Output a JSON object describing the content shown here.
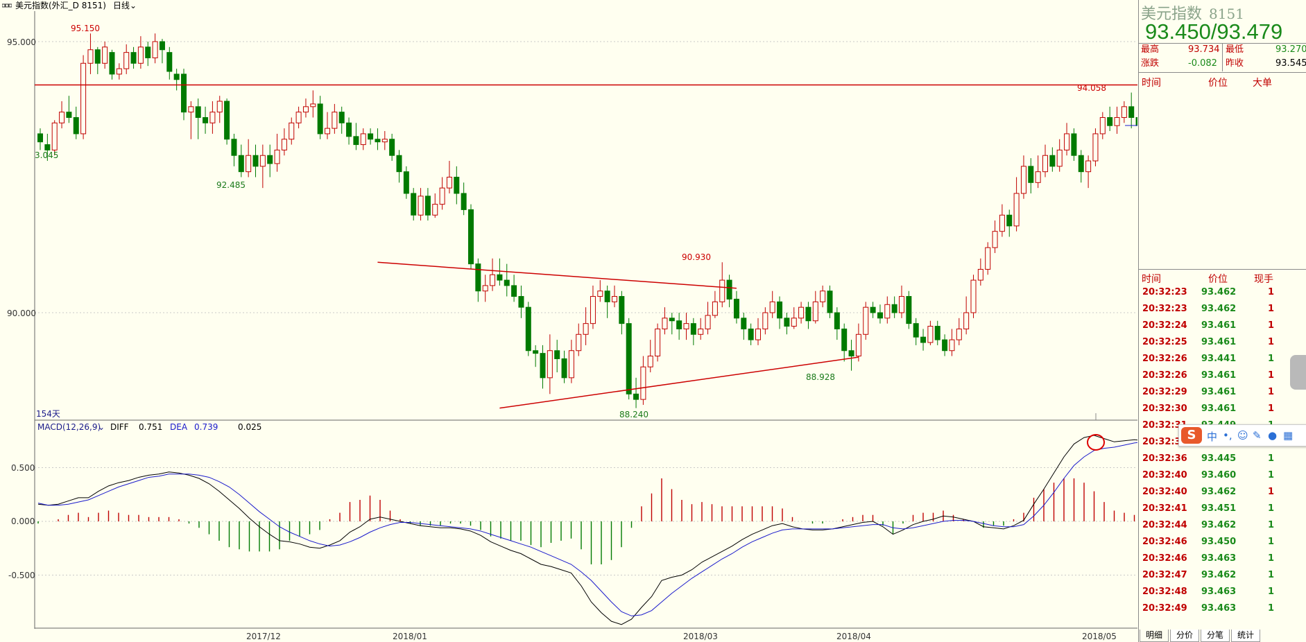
{
  "window": {
    "title": "美元指数(外汇_D 8151)",
    "period": "日线"
  },
  "chart_data": {
    "type": "candlestick",
    "symbol": "美元指数",
    "y_ticks": [
      "95.000",
      "90.000"
    ],
    "x_ticks": [
      "2017/12",
      "2018/01",
      "2018/03",
      "2018/04",
      "2018/05"
    ],
    "bar_count_label": "154天",
    "annotations": [
      {
        "text": "95.150",
        "kind": "high"
      },
      {
        "text": "3.045",
        "kind": "low"
      },
      {
        "text": "92.485",
        "kind": "low"
      },
      {
        "text": "90.930",
        "kind": "high"
      },
      {
        "text": "88.928",
        "kind": "low"
      },
      {
        "text": "88.240",
        "kind": "low"
      },
      {
        "text": "94.058",
        "kind": "high"
      }
    ],
    "horizontal_line": 94.2,
    "trendlines": [
      {
        "name": "upper",
        "from": [
          47,
          90.93
        ],
        "to": [
          97,
          90.45
        ]
      },
      {
        "name": "lower",
        "from": [
          64,
          88.24
        ],
        "to": [
          114,
          89.18
        ]
      }
    ],
    "candles": [
      [
        93.3,
        93.15,
        93.4,
        93.0
      ],
      [
        93.1,
        93.0,
        93.3,
        92.8
      ],
      [
        93.0,
        93.5,
        93.55,
        92.9
      ],
      [
        93.5,
        93.7,
        93.9,
        93.4
      ],
      [
        93.7,
        93.6,
        94.0,
        93.5
      ],
      [
        93.6,
        93.3,
        93.8,
        93.2
      ],
      [
        93.3,
        94.6,
        94.75,
        93.2
      ],
      [
        94.6,
        94.85,
        95.15,
        94.4
      ],
      [
        94.85,
        94.6,
        94.9,
        94.4
      ],
      [
        94.6,
        94.9,
        95.0,
        94.5
      ],
      [
        94.8,
        94.4,
        94.85,
        94.3
      ],
      [
        94.4,
        94.5,
        94.6,
        94.3
      ],
      [
        94.5,
        94.8,
        94.95,
        94.4
      ],
      [
        94.8,
        94.6,
        94.9,
        94.5
      ],
      [
        94.6,
        94.9,
        95.1,
        94.5
      ],
      [
        94.9,
        94.7,
        95.0,
        94.55
      ],
      [
        94.7,
        95.0,
        95.15,
        94.6
      ],
      [
        95.0,
        94.85,
        95.05,
        94.6
      ],
      [
        94.8,
        94.45,
        94.9,
        94.3
      ],
      [
        94.4,
        94.3,
        94.5,
        94.1
      ],
      [
        94.4,
        93.7,
        94.5,
        93.55
      ],
      [
        93.7,
        93.8,
        93.9,
        93.2
      ],
      [
        93.8,
        93.6,
        93.95,
        93.2
      ],
      [
        93.6,
        93.5,
        93.8,
        93.3
      ],
      [
        93.5,
        93.7,
        93.9,
        93.3
      ],
      [
        93.7,
        93.9,
        94.0,
        93.5
      ],
      [
        93.9,
        93.2,
        93.95,
        93.1
      ],
      [
        93.2,
        92.9,
        93.3,
        92.7
      ],
      [
        92.9,
        92.6,
        93.1,
        92.5
      ],
      [
        92.6,
        92.9,
        93.2,
        92.5
      ],
      [
        92.9,
        92.7,
        93.1,
        92.5
      ],
      [
        92.7,
        92.9,
        93.1,
        92.3
      ],
      [
        92.9,
        92.75,
        93.1,
        92.5
      ],
      [
        92.75,
        93.0,
        93.3,
        92.6
      ],
      [
        93.0,
        93.2,
        93.4,
        92.9
      ],
      [
        93.2,
        93.5,
        93.6,
        93.1
      ],
      [
        93.5,
        93.7,
        93.8,
        93.4
      ],
      [
        93.7,
        93.8,
        93.95,
        93.6
      ],
      [
        93.8,
        93.85,
        94.1,
        93.6
      ],
      [
        93.85,
        93.3,
        94.0,
        93.2
      ],
      [
        93.3,
        93.4,
        93.7,
        93.2
      ],
      [
        93.4,
        93.7,
        93.85,
        93.3
      ],
      [
        93.7,
        93.5,
        93.8,
        93.3
      ],
      [
        93.5,
        93.25,
        93.6,
        93.1
      ],
      [
        93.25,
        93.1,
        93.5,
        93.0
      ],
      [
        93.1,
        93.3,
        93.4,
        93.0
      ],
      [
        93.3,
        93.2,
        93.4,
        93.1
      ],
      [
        93.2,
        93.15,
        93.4,
        93.0
      ],
      [
        93.15,
        93.2,
        93.35,
        93.0
      ],
      [
        93.2,
        92.9,
        93.3,
        92.8
      ],
      [
        92.9,
        92.6,
        93.0,
        92.4
      ],
      [
        92.6,
        92.2,
        92.7,
        92.1
      ],
      [
        92.2,
        91.8,
        92.3,
        91.7
      ],
      [
        91.8,
        92.15,
        92.3,
        91.7
      ],
      [
        92.15,
        91.8,
        92.3,
        91.7
      ],
      [
        91.8,
        92.0,
        92.2,
        91.75
      ],
      [
        92.0,
        92.3,
        92.5,
        91.9
      ],
      [
        92.3,
        92.5,
        92.8,
        92.2
      ],
      [
        92.5,
        92.2,
        92.7,
        92.0
      ],
      [
        92.2,
        91.9,
        92.4,
        91.8
      ],
      [
        91.9,
        90.9,
        92.0,
        90.8
      ],
      [
        90.9,
        90.4,
        91.0,
        90.2
      ],
      [
        90.4,
        90.5,
        90.7,
        90.2
      ],
      [
        90.5,
        90.7,
        91.0,
        90.4
      ],
      [
        90.7,
        90.6,
        91.0,
        90.5
      ],
      [
        90.6,
        90.5,
        90.9,
        90.3
      ],
      [
        90.5,
        90.3,
        90.7,
        90.2
      ],
      [
        90.3,
        90.1,
        90.5,
        89.9
      ],
      [
        90.1,
        89.3,
        90.2,
        89.2
      ],
      [
        89.3,
        89.25,
        89.4,
        89.0
      ],
      [
        89.25,
        88.8,
        89.4,
        88.6
      ],
      [
        88.8,
        89.3,
        89.6,
        88.5
      ],
      [
        89.3,
        89.15,
        89.5,
        88.9
      ],
      [
        89.15,
        88.8,
        89.3,
        88.7
      ],
      [
        88.8,
        89.3,
        89.5,
        88.7
      ],
      [
        89.3,
        89.6,
        89.8,
        89.2
      ],
      [
        89.6,
        89.8,
        90.1,
        89.4
      ],
      [
        89.8,
        90.3,
        90.5,
        89.7
      ],
      [
        90.3,
        90.4,
        90.6,
        90.2
      ],
      [
        90.4,
        90.2,
        90.5,
        89.9
      ],
      [
        90.2,
        90.3,
        90.5,
        90.1
      ],
      [
        90.3,
        89.8,
        90.4,
        89.6
      ],
      [
        89.8,
        88.5,
        89.9,
        88.4
      ],
      [
        88.5,
        88.4,
        88.8,
        88.24
      ],
      [
        88.4,
        89.0,
        89.2,
        88.3
      ],
      [
        89.0,
        89.2,
        89.5,
        88.9
      ],
      [
        89.2,
        89.7,
        89.8,
        89.1
      ],
      [
        89.7,
        89.9,
        90.1,
        89.6
      ],
      [
        89.9,
        89.85,
        90.0,
        89.6
      ],
      [
        89.85,
        89.7,
        90.0,
        89.5
      ],
      [
        89.7,
        89.8,
        90.0,
        89.5
      ],
      [
        89.8,
        89.6,
        89.9,
        89.4
      ],
      [
        89.6,
        89.7,
        89.9,
        89.5
      ],
      [
        89.7,
        89.95,
        90.2,
        89.6
      ],
      [
        89.95,
        90.2,
        90.4,
        89.9
      ],
      [
        90.2,
        90.6,
        90.93,
        90.1
      ],
      [
        90.6,
        90.25,
        90.7,
        90.1
      ],
      [
        90.25,
        89.9,
        90.4,
        89.8
      ],
      [
        89.9,
        89.7,
        90.0,
        89.5
      ],
      [
        89.7,
        89.5,
        89.8,
        89.4
      ],
      [
        89.5,
        89.7,
        89.9,
        89.4
      ],
      [
        89.7,
        90.0,
        90.1,
        89.6
      ],
      [
        90.0,
        90.2,
        90.4,
        89.9
      ],
      [
        90.2,
        89.9,
        90.3,
        89.7
      ],
      [
        89.9,
        89.75,
        90.0,
        89.6
      ],
      [
        89.75,
        89.9,
        90.1,
        89.7
      ],
      [
        89.9,
        90.1,
        90.2,
        89.8
      ],
      [
        90.1,
        89.85,
        90.2,
        89.7
      ],
      [
        89.85,
        90.2,
        90.4,
        89.8
      ],
      [
        90.2,
        90.4,
        90.5,
        90.1
      ],
      [
        90.4,
        90.0,
        90.5,
        89.9
      ],
      [
        90.0,
        89.7,
        90.1,
        89.5
      ],
      [
        89.7,
        89.3,
        89.8,
        89.1
      ],
      [
        89.3,
        89.2,
        89.5,
        88.93
      ],
      [
        89.2,
        89.6,
        89.8,
        89.1
      ],
      [
        89.6,
        90.1,
        90.2,
        89.5
      ],
      [
        90.1,
        90.0,
        90.2,
        89.9
      ],
      [
        90.0,
        89.9,
        90.15,
        89.8
      ],
      [
        89.9,
        90.15,
        90.3,
        89.8
      ],
      [
        90.15,
        90.0,
        90.3,
        89.9
      ],
      [
        90.0,
        90.3,
        90.5,
        89.9
      ],
      [
        90.3,
        89.8,
        90.4,
        89.7
      ],
      [
        89.8,
        89.55,
        89.9,
        89.4
      ],
      [
        89.55,
        89.45,
        89.7,
        89.3
      ],
      [
        89.45,
        89.75,
        89.85,
        89.4
      ],
      [
        89.75,
        89.5,
        89.85,
        89.4
      ],
      [
        89.5,
        89.3,
        89.6,
        89.2
      ],
      [
        89.3,
        89.5,
        89.7,
        89.2
      ],
      [
        89.5,
        89.7,
        89.9,
        89.4
      ],
      [
        89.7,
        90.0,
        90.3,
        89.6
      ],
      [
        90.0,
        90.6,
        90.7,
        89.9
      ],
      [
        90.6,
        90.8,
        91.0,
        90.5
      ],
      [
        90.8,
        91.2,
        91.3,
        90.7
      ],
      [
        91.2,
        91.5,
        91.7,
        91.1
      ],
      [
        91.5,
        91.8,
        92.0,
        91.4
      ],
      [
        91.8,
        91.6,
        91.9,
        91.4
      ],
      [
        91.6,
        92.2,
        92.5,
        91.5
      ],
      [
        92.2,
        92.7,
        92.9,
        92.1
      ],
      [
        92.7,
        92.4,
        92.85,
        92.2
      ],
      [
        92.4,
        92.6,
        92.9,
        92.3
      ],
      [
        92.6,
        92.9,
        93.1,
        92.5
      ],
      [
        92.9,
        92.7,
        93.05,
        92.6
      ],
      [
        92.7,
        93.0,
        93.2,
        92.6
      ],
      [
        93.0,
        93.3,
        93.5,
        92.9
      ],
      [
        93.3,
        92.9,
        93.4,
        92.8
      ],
      [
        92.9,
        92.6,
        93.0,
        92.4
      ],
      [
        92.6,
        92.8,
        92.9,
        92.3
      ],
      [
        92.8,
        93.3,
        93.4,
        92.7
      ],
      [
        93.3,
        93.6,
        93.7,
        93.2
      ],
      [
        93.6,
        93.45,
        93.8,
        93.35
      ],
      [
        93.45,
        93.6,
        93.8,
        93.3
      ],
      [
        93.6,
        93.8,
        93.9,
        93.5
      ],
      [
        93.8,
        93.6,
        94.06,
        93.4
      ],
      [
        93.6,
        93.45,
        93.73,
        93.27
      ]
    ],
    "macd": {
      "label": "MACD(12,26,9)",
      "diff_label": "DIFF",
      "diff": "0.751",
      "dea_label": "DEA",
      "dea": "0.739",
      "macd_value": "0.025",
      "y_ticks": [
        "0.500",
        "0.000",
        "-0.500"
      ],
      "diff_series": [
        0.16,
        0.15,
        0.16,
        0.19,
        0.22,
        0.22,
        0.28,
        0.33,
        0.36,
        0.38,
        0.41,
        0.43,
        0.44,
        0.46,
        0.45,
        0.43,
        0.4,
        0.35,
        0.28,
        0.2,
        0.12,
        0.03,
        -0.05,
        -0.12,
        -0.18,
        -0.19,
        -0.21,
        -0.24,
        -0.25,
        -0.22,
        -0.18,
        -0.1,
        -0.05,
        0.02,
        0.04,
        0.02,
        0.0,
        -0.02,
        -0.04,
        -0.05,
        -0.06,
        -0.06,
        -0.07,
        -0.09,
        -0.13,
        -0.19,
        -0.23,
        -0.27,
        -0.3,
        -0.35,
        -0.4,
        -0.42,
        -0.45,
        -0.48,
        -0.6,
        -0.75,
        -0.85,
        -0.93,
        -0.96,
        -0.91,
        -0.8,
        -0.7,
        -0.55,
        -0.52,
        -0.5,
        -0.45,
        -0.38,
        -0.33,
        -0.28,
        -0.23,
        -0.17,
        -0.12,
        -0.08,
        -0.04,
        -0.02,
        -0.05,
        -0.07,
        -0.08,
        -0.08,
        -0.07,
        -0.05,
        -0.03,
        -0.01,
        0.0,
        -0.05,
        -0.12,
        -0.08,
        -0.03,
        0.0,
        0.02,
        0.05,
        0.04,
        0.02,
        0.0,
        -0.05,
        -0.06,
        -0.07,
        -0.04,
        0.01,
        0.16,
        0.3,
        0.45,
        0.6,
        0.72,
        0.78,
        0.8,
        0.77,
        0.74,
        0.75,
        0.76,
        0.75
      ],
      "dea_series": [
        0.17,
        0.15,
        0.15,
        0.16,
        0.18,
        0.2,
        0.24,
        0.28,
        0.32,
        0.35,
        0.38,
        0.41,
        0.42,
        0.44,
        0.44,
        0.44,
        0.43,
        0.41,
        0.37,
        0.32,
        0.25,
        0.17,
        0.09,
        0.02,
        -0.05,
        -0.1,
        -0.14,
        -0.18,
        -0.21,
        -0.23,
        -0.22,
        -0.19,
        -0.15,
        -0.1,
        -0.06,
        -0.03,
        -0.01,
        -0.01,
        -0.02,
        -0.03,
        -0.04,
        -0.05,
        -0.06,
        -0.07,
        -0.09,
        -0.12,
        -0.15,
        -0.18,
        -0.21,
        -0.24,
        -0.28,
        -0.32,
        -0.36,
        -0.4,
        -0.47,
        -0.55,
        -0.65,
        -0.75,
        -0.84,
        -0.88,
        -0.87,
        -0.83,
        -0.75,
        -0.67,
        -0.6,
        -0.53,
        -0.47,
        -0.41,
        -0.35,
        -0.3,
        -0.24,
        -0.19,
        -0.15,
        -0.11,
        -0.08,
        -0.07,
        -0.07,
        -0.07,
        -0.07,
        -0.07,
        -0.06,
        -0.05,
        -0.04,
        -0.03,
        -0.03,
        -0.06,
        -0.07,
        -0.06,
        -0.04,
        -0.02,
        0.0,
        0.01,
        0.01,
        0.0,
        -0.02,
        -0.04,
        -0.05,
        -0.05,
        -0.03,
        0.05,
        0.15,
        0.27,
        0.4,
        0.52,
        0.6,
        0.66,
        0.68,
        0.69,
        0.71,
        0.73,
        0.74
      ]
    }
  },
  "quote": {
    "name": "美元指数",
    "code": "8151",
    "bid_ask": "93.450/93.479",
    "high_label": "最高",
    "high": "93.734",
    "low_label": "最低",
    "low": "93.270",
    "change_label": "涨跌",
    "change": "-0.082",
    "prev_label": "昨收",
    "prev": "93.545"
  },
  "big_orders": {
    "headers": [
      "时间",
      "价位",
      "大单"
    ]
  },
  "ticks": {
    "headers": [
      "时间",
      "价位",
      "现手"
    ],
    "rows": [
      {
        "time": "20:32:23",
        "price": "93.462",
        "vol": "1",
        "dir": "up"
      },
      {
        "time": "20:32:23",
        "price": "93.462",
        "vol": "1",
        "dir": "up"
      },
      {
        "time": "20:32:24",
        "price": "93.461",
        "vol": "1",
        "dir": "up"
      },
      {
        "time": "20:32:25",
        "price": "93.461",
        "vol": "1",
        "dir": "up"
      },
      {
        "time": "20:32:26",
        "price": "93.441",
        "vol": "1",
        "dir": "dn"
      },
      {
        "time": "20:32:26",
        "price": "93.461",
        "vol": "1",
        "dir": "up"
      },
      {
        "time": "20:32:29",
        "price": "93.461",
        "vol": "1",
        "dir": "up"
      },
      {
        "time": "20:32:30",
        "price": "93.461",
        "vol": "1",
        "dir": "up"
      },
      {
        "time": "20:32:31",
        "price": "93.449",
        "vol": "1",
        "dir": "dn"
      },
      {
        "time": "20:32:32",
        "price": "93.437",
        "vol": "1",
        "dir": "dn"
      },
      {
        "time": "20:32:36",
        "price": "93.445",
        "vol": "1",
        "dir": "dn"
      },
      {
        "time": "20:32:40",
        "price": "93.460",
        "vol": "1",
        "dir": "dn"
      },
      {
        "time": "20:32:40",
        "price": "93.462",
        "vol": "1",
        "dir": "up"
      },
      {
        "time": "20:32:41",
        "price": "93.451",
        "vol": "1",
        "dir": "dn"
      },
      {
        "time": "20:32:44",
        "price": "93.462",
        "vol": "1",
        "dir": "dn"
      },
      {
        "time": "20:32:46",
        "price": "93.450",
        "vol": "1",
        "dir": "dn"
      },
      {
        "time": "20:32:46",
        "price": "93.463",
        "vol": "1",
        "dir": "dn"
      },
      {
        "time": "20:32:47",
        "price": "93.462",
        "vol": "1",
        "dir": "dn"
      },
      {
        "time": "20:32:48",
        "price": "93.463",
        "vol": "1",
        "dir": "dn"
      },
      {
        "time": "20:32:49",
        "price": "93.463",
        "vol": "1",
        "dir": "dn"
      }
    ]
  },
  "tabs": [
    "明细",
    "分价",
    "分笔",
    "统计"
  ],
  "ime": {
    "logo": "S",
    "mode": "中"
  },
  "colors": {
    "up": "#c00000",
    "down": "#007a00",
    "bg": "#fffff0",
    "diff": "#000000",
    "dea": "#1a1acc"
  }
}
